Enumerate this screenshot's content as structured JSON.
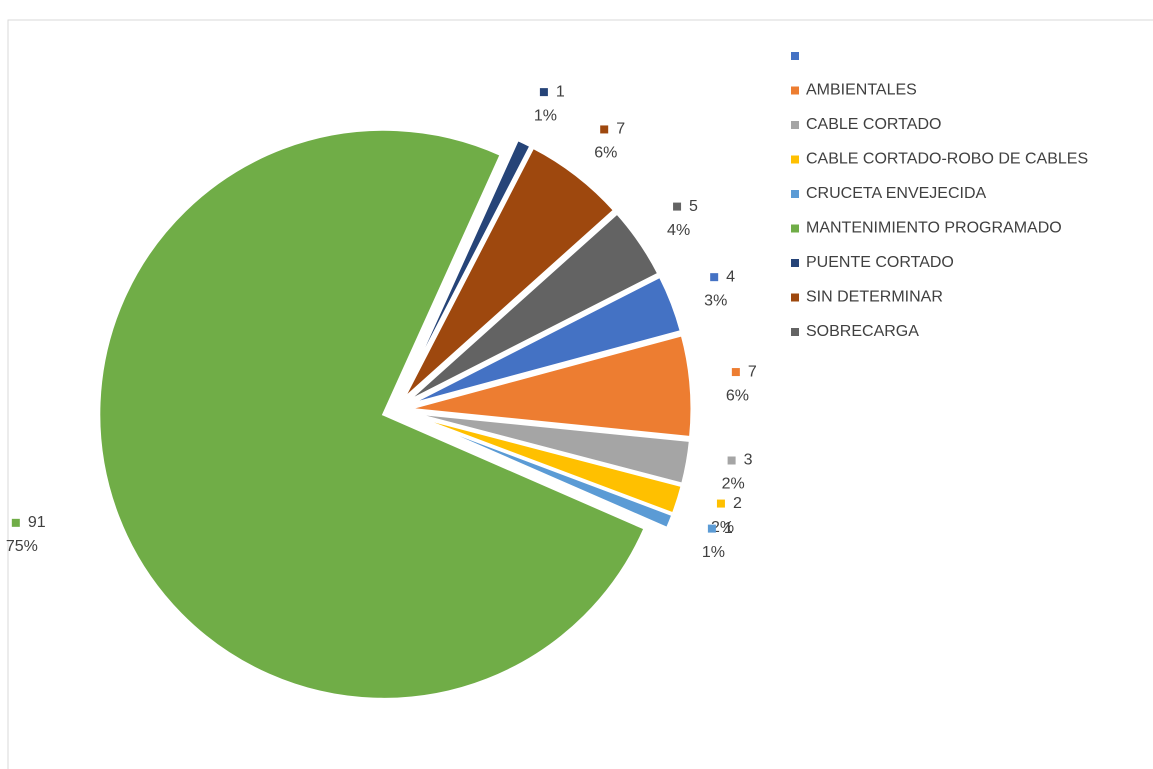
{
  "chart_data": {
    "type": "pie",
    "categories": [
      null,
      "AMBIENTALES",
      "CABLE CORTADO",
      "CABLE CORTADO-ROBO DE CABLES",
      "CRUCETA ENVEJECIDA",
      "MANTENIMIENTO PROGRAMADO",
      "PUENTE CORTADO",
      "SIN DETERMINAR",
      "SOBRECARGA"
    ],
    "values": [
      4,
      7,
      3,
      2,
      1,
      91,
      1,
      7,
      5
    ],
    "value_labels": [
      "3%",
      "6%",
      "2%",
      "2%",
      "1%",
      "75%",
      "1%",
      "6%",
      "4%"
    ],
    "colors": [
      "#4472c4",
      "#ed7d31",
      "#a5a5a5",
      "#ffc000",
      "#5b9bd5",
      "#70ad47",
      "#264478",
      "#9e480e",
      "#636363"
    ],
    "legend": "right"
  }
}
